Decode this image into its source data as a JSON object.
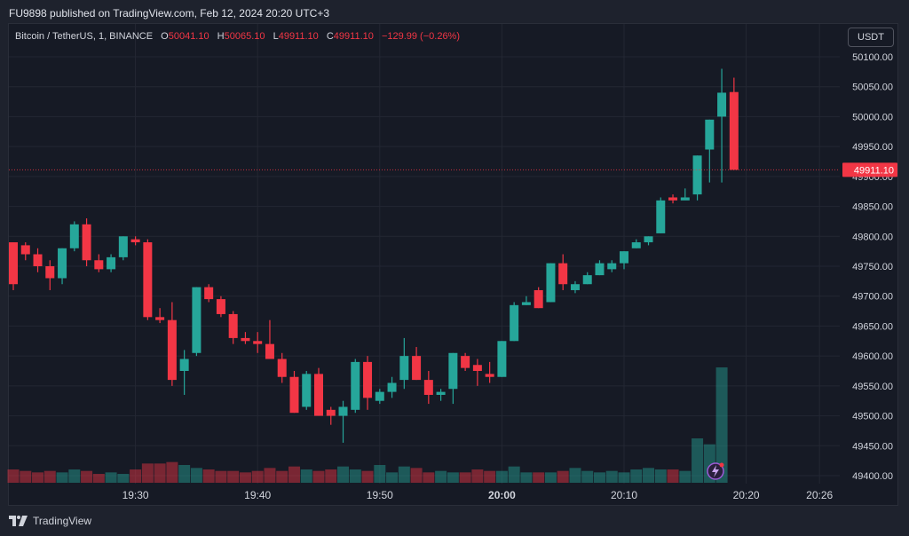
{
  "header": {
    "published_line": "FU9898 published on TradingView.com, Feb 12, 2024 20:20 UTC+3"
  },
  "legend": {
    "symbol": "Bitcoin / TetherUS, 1, BINANCE",
    "open_label": "O",
    "open_value": "50041.10",
    "high_label": "H",
    "high_value": "50065.10",
    "low_label": "L",
    "low_value": "49911.10",
    "close_label": "C",
    "close_value": "49911.10",
    "change": "−129.99 (−0.26%)"
  },
  "currency_button": "USDT",
  "footer": {
    "brand": "TradingView"
  },
  "colors": {
    "up": "#26a69a",
    "down": "#f23645",
    "price_label_bg": "#f23645"
  },
  "chart_data": {
    "type": "candlestick",
    "title": "Bitcoin / TetherUS, 1, BINANCE",
    "xlabel": "",
    "ylabel": "",
    "ylim": [
      49400,
      50100
    ],
    "grid": true,
    "y_ticks": [
      "50100.00",
      "50050.00",
      "50000.00",
      "49950.00",
      "49900.00",
      "49850.00",
      "49800.00",
      "49750.00",
      "49700.00",
      "49650.00",
      "49600.00",
      "49550.00",
      "49500.00",
      "49450.00",
      "49400.00"
    ],
    "x_ticks": [
      {
        "label": "19:30",
        "minute": 30,
        "bold": false
      },
      {
        "label": "19:40",
        "minute": 40,
        "bold": false
      },
      {
        "label": "19:50",
        "minute": 50,
        "bold": false
      },
      {
        "label": "20:00",
        "minute": 60,
        "bold": true
      },
      {
        "label": "20:10",
        "minute": 70,
        "bold": false
      },
      {
        "label": "20:20",
        "minute": 80,
        "bold": false
      },
      {
        "label": "20:26",
        "minute": 86,
        "bold": false
      }
    ],
    "last_price_label": "49911.10",
    "last_price": 49911.1,
    "first_minute": 20,
    "candles": [
      [
        49790,
        49790,
        49710,
        49720
      ],
      [
        49785,
        49790,
        49760,
        49770
      ],
      [
        49770,
        49780,
        49740,
        49750
      ],
      [
        49750,
        49760,
        49710,
        49730
      ],
      [
        49730,
        49780,
        49720,
        49780
      ],
      [
        49780,
        49825,
        49775,
        49820
      ],
      [
        49820,
        49830,
        49750,
        49760
      ],
      [
        49760,
        49770,
        49740,
        49745
      ],
      [
        49745,
        49770,
        49740,
        49765
      ],
      [
        49765,
        49800,
        49760,
        49800
      ],
      [
        49795,
        49800,
        49785,
        49790
      ],
      [
        49790,
        49795,
        49660,
        49665
      ],
      [
        49665,
        49680,
        49655,
        49660
      ],
      [
        49660,
        49690,
        49550,
        49560
      ],
      [
        49575,
        49610,
        49535,
        49595
      ],
      [
        49605,
        49715,
        49600,
        49715
      ],
      [
        49715,
        49720,
        49690,
        49695
      ],
      [
        49695,
        49700,
        49665,
        49670
      ],
      [
        49670,
        49675,
        49620,
        49630
      ],
      [
        49630,
        49640,
        49620,
        49625
      ],
      [
        49625,
        49640,
        49605,
        49620
      ],
      [
        49620,
        49660,
        49595,
        49595
      ],
      [
        49595,
        49605,
        49555,
        49565
      ],
      [
        49565,
        49575,
        49505,
        49505
      ],
      [
        49515,
        49575,
        49510,
        49570
      ],
      [
        49570,
        49580,
        49500,
        49500
      ],
      [
        49510,
        49515,
        49485,
        49500
      ],
      [
        49500,
        49525,
        49455,
        49515
      ],
      [
        49510,
        49595,
        49505,
        49590
      ],
      [
        49590,
        49600,
        49510,
        49530
      ],
      [
        49525,
        49545,
        49520,
        49540
      ],
      [
        49540,
        49565,
        49530,
        49555
      ],
      [
        49560,
        49630,
        49545,
        49600
      ],
      [
        49600,
        49615,
        49560,
        49560
      ],
      [
        49560,
        49575,
        49520,
        49535
      ],
      [
        49535,
        49545,
        49525,
        49540
      ],
      [
        49545,
        49605,
        49520,
        49605
      ],
      [
        49600,
        49605,
        49575,
        49580
      ],
      [
        49585,
        49595,
        49550,
        49575
      ],
      [
        49570,
        49590,
        49555,
        49565
      ],
      [
        49565,
        49625,
        49565,
        49625
      ],
      [
        49625,
        49690,
        49625,
        49685
      ],
      [
        49685,
        49700,
        49685,
        49690
      ],
      [
        49710,
        49715,
        49680,
        49680
      ],
      [
        49690,
        49755,
        49690,
        49755
      ],
      [
        49755,
        49770,
        49710,
        49720
      ],
      [
        49710,
        49725,
        49705,
        49720
      ],
      [
        49720,
        49740,
        49720,
        49735
      ],
      [
        49735,
        49760,
        49735,
        49755
      ],
      [
        49745,
        49760,
        49740,
        49755
      ],
      [
        49755,
        49775,
        49745,
        49775
      ],
      [
        49780,
        49795,
        49780,
        49790
      ],
      [
        49790,
        49800,
        49785,
        49800
      ],
      [
        49805,
        49865,
        49805,
        49860
      ],
      [
        49865,
        49870,
        49855,
        49860
      ],
      [
        49860,
        49880,
        49865,
        49865
      ],
      [
        49870,
        49935,
        49860,
        49935
      ],
      [
        49945,
        49995,
        49890,
        49995
      ],
      [
        50000,
        50080,
        49890,
        50040
      ],
      [
        50041.1,
        50065.1,
        49911.1,
        49911.1
      ]
    ],
    "volumes": [
      9,
      8,
      7,
      8,
      7,
      9,
      8,
      6,
      7,
      6,
      9,
      13,
      13,
      14,
      12,
      10,
      9,
      8,
      8,
      7,
      8,
      10,
      8,
      11,
      9,
      8,
      9,
      11,
      9,
      8,
      12,
      7,
      11,
      10,
      7,
      8,
      7,
      7,
      9,
      8,
      8,
      11,
      7,
      7,
      7,
      8,
      10,
      8,
      7,
      8,
      7,
      9,
      10,
      9,
      9,
      8,
      30,
      26,
      78,
      0
    ]
  }
}
